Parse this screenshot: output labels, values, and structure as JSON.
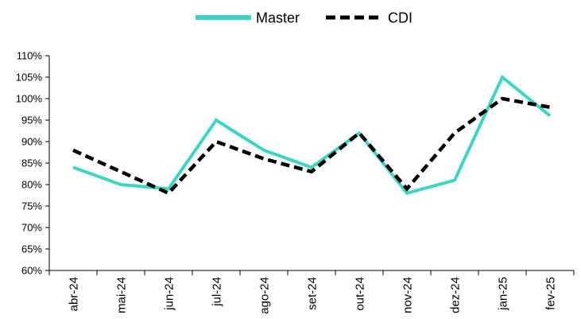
{
  "chart_data": {
    "type": "line",
    "title": "",
    "xlabel": "",
    "ylabel": "",
    "categories": [
      "abr-24",
      "mai-24",
      "jun-24",
      "jul-24",
      "ago-24",
      "set-24",
      "out-24",
      "nov-24",
      "dez-24",
      "jan-25",
      "fev-25"
    ],
    "series": [
      {
        "name": "Master",
        "values": [
          84,
          80,
          79,
          95,
          88,
          84,
          92,
          78,
          81,
          105,
          96
        ],
        "color": "#3dd6c4",
        "style": "solid"
      },
      {
        "name": "CDI",
        "values": [
          88,
          83,
          78,
          90,
          86,
          83,
          92,
          79,
          92,
          100,
          98
        ],
        "color": "#000000",
        "style": "dashed"
      }
    ],
    "ylim": [
      60,
      110
    ],
    "yticks": [
      60,
      65,
      70,
      75,
      80,
      85,
      90,
      95,
      100,
      105,
      110
    ],
    "ytick_labels": [
      "60%",
      "65%",
      "70%",
      "75%",
      "80%",
      "85%",
      "90%",
      "95%",
      "100%",
      "105%",
      "110%"
    ],
    "grid": false,
    "legend_position": "top-center"
  }
}
